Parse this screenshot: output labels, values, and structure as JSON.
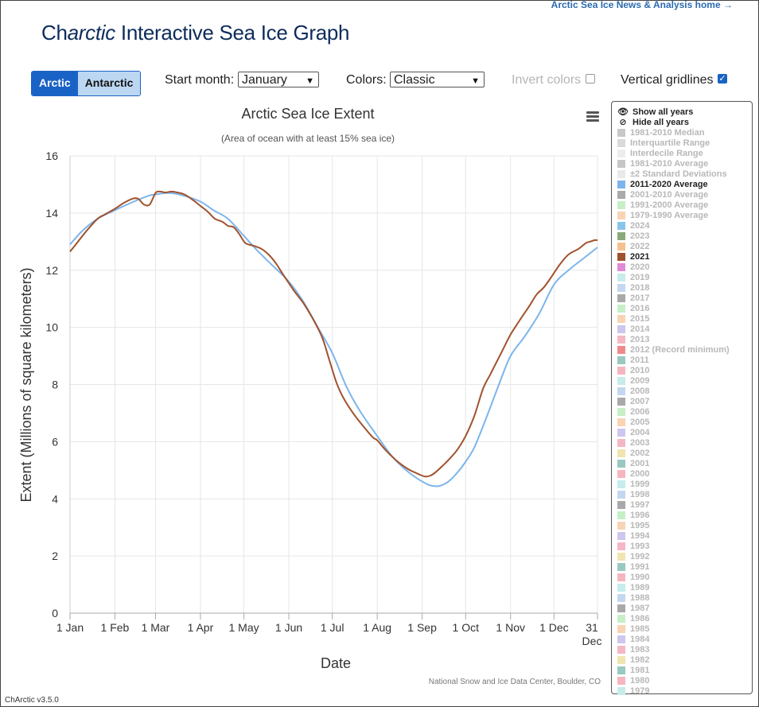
{
  "header": {
    "home_link": "Arctic Sea Ice News & Analysis home →",
    "title_prefix": "Ch",
    "title_italic": "arctic",
    "title_suffix": " Interactive Sea Ice Graph"
  },
  "controls": {
    "hemisphere": {
      "options": [
        "Arctic",
        "Antarctic"
      ],
      "selected": "Arctic"
    },
    "start_month": {
      "label": "Start month:",
      "value": "January"
    },
    "colors": {
      "label": "Colors:",
      "value": "Classic"
    },
    "invert_colors": {
      "label": "Invert colors",
      "checked": false
    },
    "vertical_gridlines": {
      "label": "Vertical gridlines",
      "checked": true
    }
  },
  "legend": {
    "show_all": "Show all years",
    "hide_all": "Hide all years",
    "items": [
      {
        "label": "1981-2010 Median",
        "color": "#c8c8c8",
        "visible": false
      },
      {
        "label": "Interquartile Range",
        "color": "#dadada",
        "visible": false
      },
      {
        "label": "Interdecile Range",
        "color": "#ececec",
        "visible": false
      },
      {
        "label": "1981-2010 Average",
        "color": "#c6c6c6",
        "visible": false
      },
      {
        "label": "±2 Standard Deviations",
        "color": "#e9e9e9",
        "visible": false
      },
      {
        "label": "2011-2020 Average",
        "color": "#7cb5ec",
        "visible": true
      },
      {
        "label": "2001-2010 Average",
        "color": "#aaaaaa",
        "visible": false
      },
      {
        "label": "1991-2000 Average",
        "color": "#c6efc6",
        "visible": false
      },
      {
        "label": "1979-1990 Average",
        "color": "#f8d4b4",
        "visible": false
      },
      {
        "label": "2024",
        "color": "#8ac6ea",
        "visible": false
      },
      {
        "label": "2023",
        "color": "#89a97a",
        "visible": false
      },
      {
        "label": "2022",
        "color": "#f4c28e",
        "visible": false
      },
      {
        "label": "2021",
        "color": "#a0522d",
        "visible": true
      },
      {
        "label": "2020",
        "color": "#e08ad8",
        "visible": false
      },
      {
        "label": "2019",
        "color": "#c6ecec",
        "visible": false
      },
      {
        "label": "2018",
        "color": "#c3d7f0",
        "visible": false
      },
      {
        "label": "2017",
        "color": "#a9a9a9",
        "visible": false
      },
      {
        "label": "2016",
        "color": "#c6efc6",
        "visible": false
      },
      {
        "label": "2015",
        "color": "#f8d4b4",
        "visible": false
      },
      {
        "label": "2014",
        "color": "#cdc6ee",
        "visible": false
      },
      {
        "label": "2013",
        "color": "#f4b8c4",
        "visible": false
      },
      {
        "label": "2012 (Record minimum)",
        "color": "#f08a8a",
        "visible": false
      },
      {
        "label": "2011",
        "color": "#9ac9c0",
        "visible": false
      },
      {
        "label": "2010",
        "color": "#f6b6be",
        "visible": false
      },
      {
        "label": "2009",
        "color": "#c6ecec",
        "visible": false
      },
      {
        "label": "2008",
        "color": "#c3d7f0",
        "visible": false
      },
      {
        "label": "2007",
        "color": "#a9a9a9",
        "visible": false
      },
      {
        "label": "2006",
        "color": "#c6efc6",
        "visible": false
      },
      {
        "label": "2005",
        "color": "#f8d4b4",
        "visible": false
      },
      {
        "label": "2004",
        "color": "#cdc6ee",
        "visible": false
      },
      {
        "label": "2003",
        "color": "#f4b8c4",
        "visible": false
      },
      {
        "label": "2002",
        "color": "#f0e4b0",
        "visible": false
      },
      {
        "label": "2001",
        "color": "#9ac9c0",
        "visible": false
      },
      {
        "label": "2000",
        "color": "#f6b6be",
        "visible": false
      },
      {
        "label": "1999",
        "color": "#c6ecec",
        "visible": false
      },
      {
        "label": "1998",
        "color": "#c3d7f0",
        "visible": false
      },
      {
        "label": "1997",
        "color": "#a9a9a9",
        "visible": false
      },
      {
        "label": "1996",
        "color": "#c6efc6",
        "visible": false
      },
      {
        "label": "1995",
        "color": "#f8d4b4",
        "visible": false
      },
      {
        "label": "1994",
        "color": "#cdc6ee",
        "visible": false
      },
      {
        "label": "1993",
        "color": "#f4b8c4",
        "visible": false
      },
      {
        "label": "1992",
        "color": "#f0e4b0",
        "visible": false
      },
      {
        "label": "1991",
        "color": "#9ac9c0",
        "visible": false
      },
      {
        "label": "1990",
        "color": "#f6b6be",
        "visible": false
      },
      {
        "label": "1989",
        "color": "#c6ecec",
        "visible": false
      },
      {
        "label": "1988",
        "color": "#c3d7f0",
        "visible": false
      },
      {
        "label": "1987",
        "color": "#a9a9a9",
        "visible": false
      },
      {
        "label": "1986",
        "color": "#c6efc6",
        "visible": false
      },
      {
        "label": "1985",
        "color": "#f8d4b4",
        "visible": false
      },
      {
        "label": "1984",
        "color": "#cdc6ee",
        "visible": false
      },
      {
        "label": "1983",
        "color": "#f4b8c4",
        "visible": false
      },
      {
        "label": "1982",
        "color": "#f0e4b0",
        "visible": false
      },
      {
        "label": "1981",
        "color": "#9ac9c0",
        "visible": false
      },
      {
        "label": "1980",
        "color": "#f6b6be",
        "visible": false
      },
      {
        "label": "1979",
        "color": "#c6ecec",
        "visible": false
      }
    ]
  },
  "footer": {
    "credit": "National Snow and Ice Data Center, Boulder, CO",
    "version": "ChArctic v3.5.0"
  },
  "chart_data": {
    "type": "line",
    "title": "Arctic Sea Ice Extent",
    "subtitle": "(Area of ocean with at least 15% sea ice)",
    "xlabel": "Date",
    "ylabel": "Extent (Millions of square kilometers)",
    "xlim": [
      1,
      365
    ],
    "ylim": [
      0,
      16
    ],
    "yticks": [
      0,
      2,
      4,
      6,
      8,
      10,
      12,
      14,
      16
    ],
    "xticks": [
      {
        "day": 1,
        "label": "1 Jan"
      },
      {
        "day": 32,
        "label": "1 Feb"
      },
      {
        "day": 60,
        "label": "1 Mar"
      },
      {
        "day": 91,
        "label": "1 Apr"
      },
      {
        "day": 121,
        "label": "1 May"
      },
      {
        "day": 152,
        "label": "1 Jun"
      },
      {
        "day": 182,
        "label": "1 Jul"
      },
      {
        "day": 213,
        "label": "1 Aug"
      },
      {
        "day": 244,
        "label": "1 Sep"
      },
      {
        "day": 274,
        "label": "1 Oct"
      },
      {
        "day": 305,
        "label": "1 Nov"
      },
      {
        "day": 335,
        "label": "1 Dec"
      },
      {
        "day": 365,
        "label": "31 Dec"
      }
    ],
    "grid": {
      "horizontal": true,
      "vertical": true
    },
    "series": [
      {
        "name": "2011-2020 Average",
        "color": "#7cb5ec",
        "x": [
          1,
          10,
          20,
          32,
          45,
          55,
          60,
          70,
          80,
          91,
          100,
          110,
          121,
          130,
          140,
          152,
          162,
          172,
          182,
          192,
          202,
          213,
          223,
          233,
          241,
          248,
          252,
          256,
          262,
          268,
          274,
          280,
          288,
          297,
          305,
          315,
          325,
          335,
          345,
          355,
          365
        ],
        "y": [
          12.9,
          13.4,
          13.8,
          14.1,
          14.4,
          14.6,
          14.65,
          14.7,
          14.6,
          14.4,
          14.1,
          13.8,
          13.2,
          12.7,
          12.2,
          11.6,
          10.9,
          10.0,
          9.1,
          7.9,
          7.0,
          6.2,
          5.5,
          5.0,
          4.7,
          4.5,
          4.45,
          4.45,
          4.6,
          4.9,
          5.3,
          5.8,
          6.8,
          8.0,
          9.0,
          9.7,
          10.5,
          11.5,
          12.0,
          12.4,
          12.8
        ]
      },
      {
        "name": "2021",
        "color": "#a0522d",
        "x": [
          1,
          5,
          12,
          20,
          25,
          32,
          38,
          44,
          48,
          52,
          56,
          60,
          63,
          67,
          71,
          75,
          80,
          86,
          91,
          96,
          101,
          106,
          110,
          114,
          118,
          122,
          128,
          133,
          138,
          143,
          148,
          152,
          156,
          162,
          168,
          175,
          180,
          185,
          190,
          197,
          204,
          210,
          213,
          218,
          226,
          234,
          240,
          246,
          250,
          253,
          258,
          262,
          268,
          274,
          280,
          286,
          291,
          295,
          300,
          305,
          312,
          318,
          323,
          328,
          333,
          339,
          345,
          352,
          357,
          360,
          363,
          365
        ],
        "y": [
          12.65,
          12.9,
          13.35,
          13.8,
          13.95,
          14.15,
          14.35,
          14.5,
          14.5,
          14.3,
          14.3,
          14.7,
          14.75,
          14.72,
          14.75,
          14.72,
          14.65,
          14.45,
          14.25,
          14.05,
          13.8,
          13.7,
          13.55,
          13.5,
          13.25,
          12.95,
          12.85,
          12.75,
          12.55,
          12.25,
          11.85,
          11.55,
          11.25,
          10.85,
          10.35,
          9.65,
          8.85,
          8.05,
          7.5,
          6.95,
          6.5,
          6.15,
          6.05,
          5.75,
          5.35,
          5.05,
          4.9,
          4.78,
          4.82,
          4.92,
          5.15,
          5.35,
          5.7,
          6.2,
          6.9,
          7.85,
          8.35,
          8.75,
          9.25,
          9.75,
          10.3,
          10.75,
          11.15,
          11.4,
          11.75,
          12.2,
          12.55,
          12.75,
          12.95,
          13.0,
          13.05,
          13.05
        ]
      }
    ]
  }
}
